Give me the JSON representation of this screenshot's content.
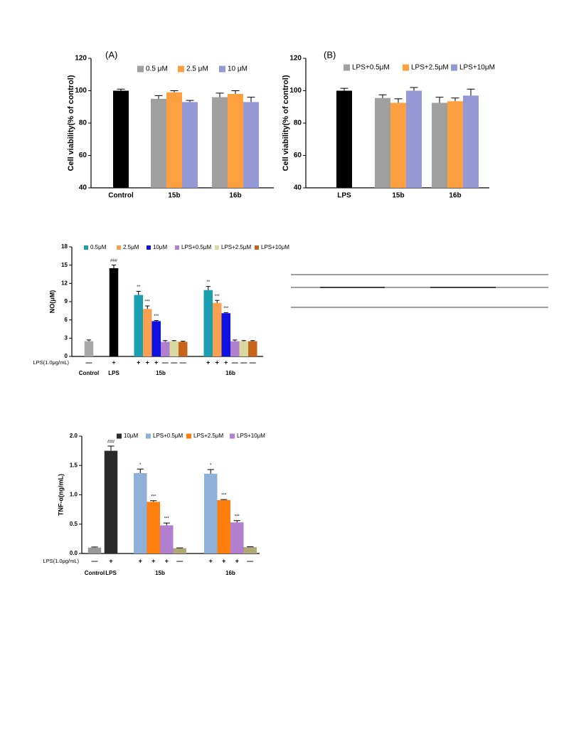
{
  "chart_data": [
    {
      "type": "bar",
      "label": "(A)",
      "ylabel": "Cell viability(% of control)",
      "categories": [
        "Control",
        "15b",
        "16b"
      ],
      "ylim": [
        40,
        120
      ],
      "yticks": [
        40,
        60,
        80,
        100,
        120
      ],
      "series": [
        {
          "color": "#000000",
          "values": [
            100,
            null,
            null
          ],
          "errors": [
            1,
            null,
            null
          ]
        },
        {
          "name": "0.5 μM",
          "color": "#a0a0a0",
          "values": [
            null,
            95,
            96
          ],
          "errors": [
            null,
            2,
            2.5
          ]
        },
        {
          "name": "2.5 μM",
          "color": "#ffa040",
          "values": [
            null,
            99,
            98
          ],
          "errors": [
            null,
            1,
            2
          ]
        },
        {
          "name": "10 μM",
          "color": "#9499d6",
          "values": [
            null,
            93,
            93
          ],
          "errors": [
            null,
            1,
            3
          ]
        }
      ]
    },
    {
      "type": "bar",
      "label": "(B)",
      "ylabel": "Cell viability(% of control)",
      "categories": [
        "LPS",
        "15b",
        "16b"
      ],
      "ylim": [
        40,
        120
      ],
      "yticks": [
        40,
        60,
        80,
        100,
        120
      ],
      "series": [
        {
          "color": "#000000",
          "values": [
            100,
            null,
            null
          ],
          "errors": [
            1.5,
            null,
            null
          ]
        },
        {
          "name": "LPS+0.5μM",
          "color": "#a0a0a0",
          "values": [
            null,
            95.5,
            92.5
          ],
          "errors": [
            null,
            2,
            3.5
          ]
        },
        {
          "name": "LPS+2.5μM",
          "color": "#ffa040",
          "values": [
            null,
            92.5,
            93.5
          ],
          "errors": [
            null,
            2.5,
            2
          ]
        },
        {
          "name": "LPS+10μM",
          "color": "#9499d6",
          "values": [
            null,
            100,
            97
          ],
          "errors": [
            null,
            2,
            4
          ]
        }
      ]
    },
    {
      "type": "bar",
      "ylabel": "NO(μM)",
      "categories": [
        "Control",
        "LPS",
        "15b",
        "16b"
      ],
      "ylim": [
        0,
        18
      ],
      "yticks": [
        0,
        3,
        6,
        9,
        12,
        15,
        18
      ],
      "treatment": {
        "label": "LPS(1.0μg/mL)",
        "signs": [
          [
            "—"
          ],
          [
            "+"
          ],
          [
            "+",
            "+",
            "+",
            "—",
            "—",
            "—"
          ],
          [
            "+",
            "+",
            "+",
            "—",
            "—",
            "—"
          ]
        ]
      },
      "series": [
        {
          "color": "#a8a8a8",
          "values": [
            2.5,
            null,
            null,
            null
          ],
          "errors": [
            0.2,
            null,
            null,
            null
          ]
        },
        {
          "color": "#000000",
          "values": [
            null,
            14.5,
            null,
            null
          ],
          "errors": [
            null,
            0.5,
            null,
            null
          ],
          "annotations": [
            null,
            "###",
            null,
            null
          ]
        },
        {
          "name": "0.5μM",
          "color": "#1a9fb0",
          "values": [
            null,
            null,
            10.1,
            10.9
          ],
          "errors": [
            null,
            null,
            0.6,
            0.6
          ],
          "annotations": [
            null,
            null,
            "**",
            "**"
          ]
        },
        {
          "name": "2.5μM",
          "color": "#f8a050",
          "values": [
            null,
            null,
            7.8,
            8.8
          ],
          "errors": [
            null,
            null,
            0.5,
            0.4
          ],
          "annotations": [
            null,
            null,
            "***",
            "***"
          ]
        },
        {
          "name": "10μM",
          "color": "#1010e0",
          "values": [
            null,
            null,
            5.8,
            7.1
          ],
          "errors": [
            null,
            null,
            0.1,
            0.1
          ],
          "annotations": [
            null,
            null,
            "***",
            "***"
          ]
        },
        {
          "name": "LPS+0.5μM",
          "color": "#b07fd0",
          "values": [
            null,
            null,
            2.4,
            2.5
          ],
          "errors": [
            null,
            null,
            0.2,
            0.2
          ]
        },
        {
          "name": "LPS+2.5μM",
          "color": "#d8d8a0",
          "values": [
            null,
            null,
            2.5,
            2.5
          ],
          "errors": [
            null,
            null,
            0.1,
            0.1
          ]
        },
        {
          "name": "LPS+10μM",
          "color": "#c8641a",
          "values": [
            null,
            null,
            2.4,
            2.5
          ],
          "errors": [
            null,
            null,
            0.1,
            0.1
          ]
        }
      ]
    },
    {
      "type": "bar",
      "ylabel": "TNF-α(ng/mL)",
      "categories": [
        "Control",
        "LPS",
        "15b",
        "16b"
      ],
      "ylim": [
        0,
        2
      ],
      "yticks": [
        {
          "value": 0,
          "label": "0.0"
        },
        0.5,
        {
          "value": 1,
          "label": "1.0"
        },
        1.5,
        {
          "value": 2,
          "label": "2.0"
        }
      ],
      "treatment": {
        "label": "LPS(1.0μg/mL)",
        "signs": [
          [
            "—"
          ],
          [
            "+"
          ],
          [
            "+",
            "+",
            "+",
            "—"
          ],
          [
            "+",
            "+",
            "+",
            "—"
          ]
        ]
      },
      "series": [
        {
          "color": "#999999",
          "values": [
            0.1,
            null,
            null,
            null
          ],
          "errors": [
            0.01,
            null,
            null,
            null
          ]
        },
        {
          "name": "10μM",
          "color": "#2b2b2b",
          "values": [
            null,
            1.75,
            null,
            null
          ],
          "errors": [
            null,
            0.08,
            null,
            null
          ],
          "annotations": [
            null,
            "###",
            null,
            null
          ]
        },
        {
          "name": "LPS+0.5μM",
          "color": "#8fb0d8",
          "values": [
            null,
            null,
            1.37,
            1.36
          ],
          "errors": [
            null,
            null,
            0.07,
            0.07
          ],
          "annotations": [
            null,
            null,
            "*",
            "*"
          ]
        },
        {
          "name": "LPS+2.5μM",
          "color": "#ff7f0e",
          "values": [
            null,
            null,
            0.88,
            0.91
          ],
          "errors": [
            null,
            null,
            0.02,
            0.01
          ],
          "annotations": [
            null,
            null,
            "***",
            "***"
          ]
        },
        {
          "name": "LPS+10μM",
          "color": "#b27fcf",
          "values": [
            null,
            null,
            0.48,
            0.53
          ],
          "errors": [
            null,
            null,
            0.04,
            0.03
          ],
          "annotations": [
            null,
            null,
            "***",
            "***"
          ]
        },
        {
          "color": "#b0a878",
          "values": [
            null,
            null,
            0.09,
            0.11
          ],
          "errors": [
            null,
            null,
            0.005,
            0.005
          ]
        }
      ]
    }
  ]
}
